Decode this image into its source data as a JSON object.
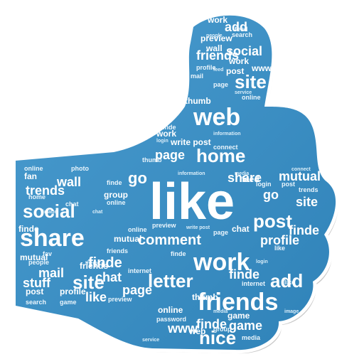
{
  "image": {
    "subject": "thumbs-up hand filled with a word cloud",
    "colors": {
      "shape_fill": "#3f93c7",
      "shape_fill_dark": "#2d7fb3",
      "outline": "#ffffff",
      "shadow": "#c9c9c9",
      "text": "#ffffff"
    }
  },
  "words": {
    "like": "like",
    "web": "web",
    "work": "work",
    "share": "share",
    "friends": "friends",
    "site": "site",
    "post": "post",
    "home": "home",
    "social": "social",
    "profile": "profile",
    "comment": "comment",
    "letter": "letter",
    "add": "add",
    "nice": "nice",
    "page": "page",
    "finde": "finde",
    "mutual": "mutual",
    "trends": "trends",
    "wall": "wall",
    "go": "go",
    "stuff": "stuff",
    "online": "online",
    "photo": "photo",
    "people": "people",
    "search": "search",
    "game": "game",
    "chat": "chat",
    "mail": "mail",
    "fan": "fan",
    "fav": "fav",
    "www": "www",
    "feed": "feed",
    "thumb": "thumb",
    "group": "group",
    "internet": "internet",
    "preview": "preview",
    "password": "password",
    "service": "service",
    "information": "information",
    "image": "image",
    "media": "media",
    "login": "login",
    "write_post": "write post",
    "connect": "connect",
    "theme": "theme",
    "mail2": "mail"
  }
}
